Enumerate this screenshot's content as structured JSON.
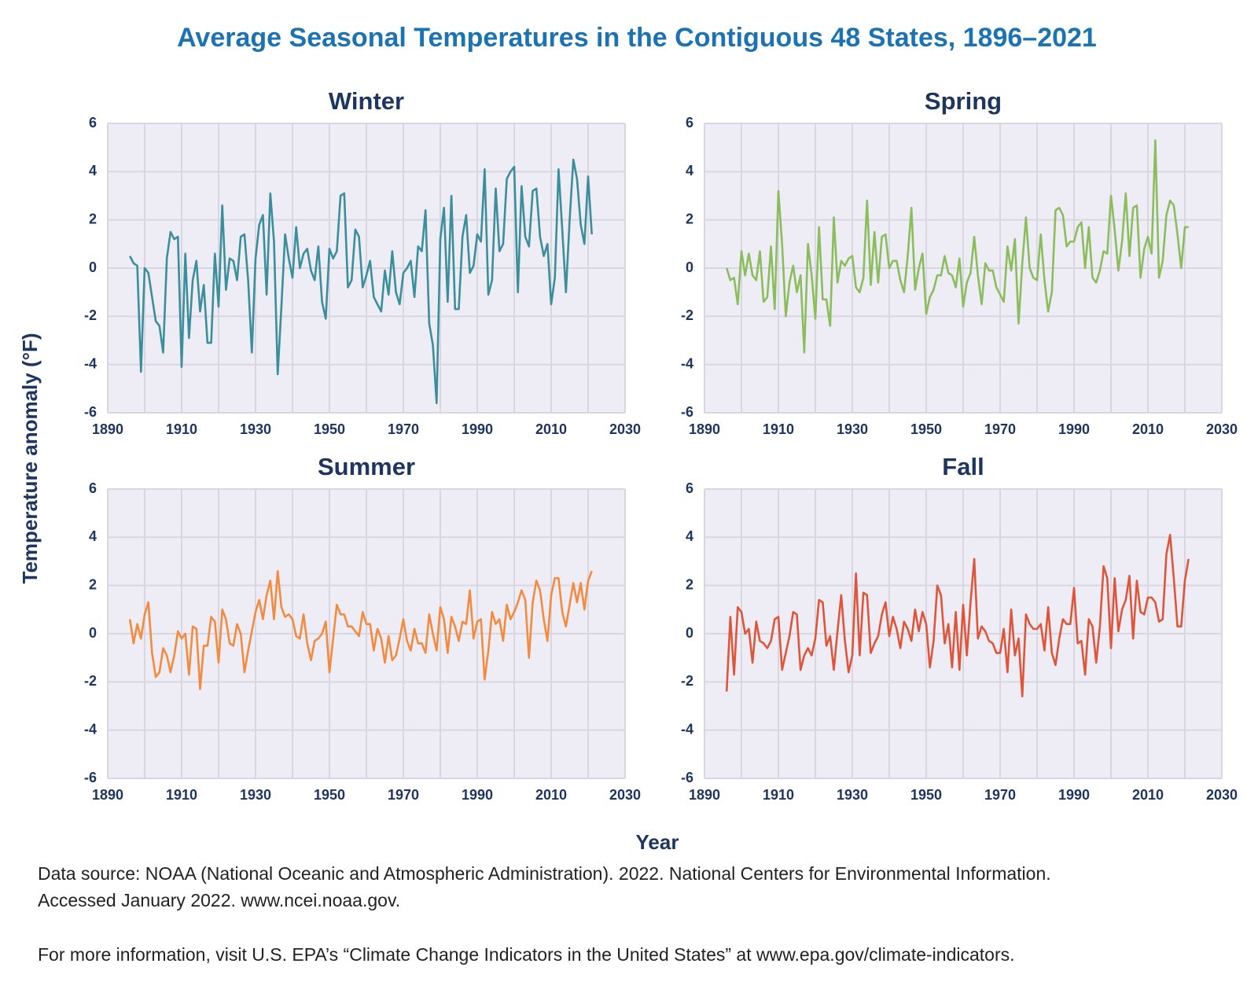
{
  "title": "Average Seasonal Temperatures in the Contiguous 48 States, 1896–2021",
  "y_axis_label": "Temperature anomaly (°F)",
  "x_axis_label": "Year",
  "notes": [
    "Data source: NOAA (National Oceanic and Atmospheric Administration). 2022. National Centers for Environmental Information.",
    "Accessed January 2022. www.ncei.noaa.gov.",
    "For more information, visit U.S. EPA’s “Climate Change Indicators in the United States” at www.epa.gov/climate-indicators."
  ],
  "chart_data": [
    {
      "type": "line",
      "title": "Winter",
      "color": "#3b8e9c",
      "x": [
        1896,
        1897,
        1898,
        1899,
        1900,
        1901,
        1902,
        1903,
        1904,
        1905,
        1906,
        1907,
        1908,
        1909,
        1910,
        1911,
        1912,
        1913,
        1914,
        1915,
        1916,
        1917,
        1918,
        1919,
        1920,
        1921,
        1922,
        1923,
        1924,
        1925,
        1926,
        1927,
        1928,
        1929,
        1930,
        1931,
        1932,
        1933,
        1934,
        1935,
        1936,
        1937,
        1938,
        1939,
        1940,
        1941,
        1942,
        1943,
        1944,
        1945,
        1946,
        1947,
        1948,
        1949,
        1950,
        1951,
        1952,
        1953,
        1954,
        1955,
        1956,
        1957,
        1958,
        1959,
        1960,
        1961,
        1962,
        1963,
        1964,
        1965,
        1966,
        1967,
        1968,
        1969,
        1970,
        1971,
        1972,
        1973,
        1974,
        1975,
        1976,
        1977,
        1978,
        1979,
        1980,
        1981,
        1982,
        1983,
        1984,
        1985,
        1986,
        1987,
        1988,
        1989,
        1990,
        1991,
        1992,
        1993,
        1994,
        1995,
        1996,
        1997,
        1998,
        1999,
        2000,
        2001,
        2002,
        2003,
        2004,
        2005,
        2006,
        2007,
        2008,
        2009,
        2010,
        2011,
        2012,
        2013,
        2014,
        2015,
        2016,
        2017,
        2018,
        2019,
        2020,
        2021
      ],
      "values": [
        0.5,
        0.2,
        0.1,
        -4.3,
        0.0,
        -0.2,
        -1.2,
        -2.2,
        -2.4,
        -3.5,
        0.4,
        1.5,
        1.2,
        1.3,
        -4.1,
        0.6,
        -2.9,
        -0.5,
        0.3,
        -1.8,
        -0.7,
        -3.1,
        -3.1,
        0.6,
        -1.6,
        2.6,
        -0.9,
        0.4,
        0.3,
        -0.5,
        1.3,
        1.4,
        -0.5,
        -3.5,
        0.4,
        1.8,
        2.2,
        -1.1,
        3.1,
        1.1,
        -4.4,
        -1.6,
        1.4,
        0.4,
        -0.4,
        1.7,
        0.0,
        0.6,
        0.8,
        -0.1,
        -0.5,
        0.9,
        -1.4,
        -2.1,
        0.8,
        0.4,
        0.7,
        3.0,
        3.1,
        -0.8,
        -0.5,
        1.6,
        1.3,
        -0.8,
        -0.3,
        0.3,
        -1.2,
        -1.5,
        -1.8,
        -0.1,
        -1.1,
        0.7,
        -1.0,
        -1.5,
        -0.2,
        0.0,
        0.3,
        -1.2,
        0.9,
        0.7,
        2.4,
        -2.3,
        -3.2,
        -5.6,
        1.2,
        2.5,
        -1.4,
        3.0,
        -1.7,
        -1.7,
        1.3,
        2.2,
        -0.2,
        0.1,
        1.4,
        1.1,
        4.1,
        -1.1,
        -0.5,
        3.3,
        0.7,
        1.0,
        3.7,
        4.0,
        4.2,
        -1.0,
        3.4,
        1.3,
        0.9,
        3.2,
        3.3,
        1.3,
        0.5,
        1.0,
        -1.5,
        -0.4,
        4.1,
        1.6,
        -1.0,
        2.0,
        4.5,
        3.7,
        1.8,
        1.0,
        3.8,
        1.4
      ],
      "xlim": [
        1890,
        2030
      ],
      "xticks": [
        1890,
        1910,
        1930,
        1950,
        1970,
        1990,
        2010,
        2030
      ],
      "xgrid": [
        1900,
        1920,
        1940,
        1960,
        1980,
        2000,
        2020
      ],
      "ylim": [
        -6,
        6
      ],
      "yticks": [
        -6,
        -4,
        -2,
        0,
        2,
        4,
        6
      ],
      "grid": true
    },
    {
      "type": "line",
      "title": "Spring",
      "color": "#8bbd5c",
      "x": [
        1896,
        1897,
        1898,
        1899,
        1900,
        1901,
        1902,
        1903,
        1904,
        1905,
        1906,
        1907,
        1908,
        1909,
        1910,
        1911,
        1912,
        1913,
        1914,
        1915,
        1916,
        1917,
        1918,
        1919,
        1920,
        1921,
        1922,
        1923,
        1924,
        1925,
        1926,
        1927,
        1928,
        1929,
        1930,
        1931,
        1932,
        1933,
        1934,
        1935,
        1936,
        1937,
        1938,
        1939,
        1940,
        1941,
        1942,
        1943,
        1944,
        1945,
        1946,
        1947,
        1948,
        1949,
        1950,
        1951,
        1952,
        1953,
        1954,
        1955,
        1956,
        1957,
        1958,
        1959,
        1960,
        1961,
        1962,
        1963,
        1964,
        1965,
        1966,
        1967,
        1968,
        1969,
        1970,
        1971,
        1972,
        1973,
        1974,
        1975,
        1976,
        1977,
        1978,
        1979,
        1980,
        1981,
        1982,
        1983,
        1984,
        1985,
        1986,
        1987,
        1988,
        1989,
        1990,
        1991,
        1992,
        1993,
        1994,
        1995,
        1996,
        1997,
        1998,
        1999,
        2000,
        2001,
        2002,
        2003,
        2004,
        2005,
        2006,
        2007,
        2008,
        2009,
        2010,
        2011,
        2012,
        2013,
        2014,
        2015,
        2016,
        2017,
        2018,
        2019,
        2020,
        2021
      ],
      "values": [
        0.0,
        -0.5,
        -0.4,
        -1.5,
        0.7,
        -0.3,
        0.6,
        -0.3,
        -0.5,
        0.7,
        -1.4,
        -1.2,
        0.9,
        -1.7,
        3.2,
        1.0,
        -2.0,
        -0.6,
        0.1,
        -1.0,
        -0.3,
        -3.5,
        1.0,
        -0.3,
        -2.1,
        1.7,
        -1.3,
        -1.3,
        -2.4,
        2.1,
        -0.6,
        0.3,
        0.1,
        0.4,
        0.5,
        -0.8,
        -1.0,
        -0.4,
        2.8,
        -0.7,
        1.5,
        -0.6,
        1.3,
        1.4,
        0.0,
        0.3,
        0.3,
        -0.5,
        -1.0,
        0.5,
        2.5,
        -0.9,
        0.0,
        0.6,
        -1.9,
        -1.2,
        -0.9,
        -0.3,
        -0.3,
        0.5,
        -0.2,
        -0.3,
        -0.8,
        0.4,
        -1.6,
        -0.6,
        -0.2,
        1.3,
        -0.3,
        -1.5,
        0.2,
        -0.1,
        -0.1,
        -0.8,
        -1.1,
        -1.4,
        0.9,
        -0.1,
        1.2,
        -2.3,
        0.2,
        2.1,
        0.0,
        -0.4,
        -0.5,
        1.4,
        -0.5,
        -1.8,
        -1.0,
        2.4,
        2.5,
        2.2,
        0.9,
        1.1,
        1.1,
        1.7,
        1.9,
        0.0,
        1.7,
        -0.4,
        -0.6,
        -0.1,
        0.7,
        0.6,
        3.0,
        1.6,
        -0.1,
        1.1,
        3.1,
        0.5,
        2.5,
        2.6,
        -0.4,
        0.8,
        1.3,
        0.6,
        5.3,
        -0.4,
        0.3,
        2.2,
        2.8,
        2.6,
        1.4,
        0.0,
        1.7,
        1.7
      ],
      "xlim": [
        1890,
        2030
      ],
      "xticks": [
        1890,
        1910,
        1930,
        1950,
        1970,
        1990,
        2010,
        2030
      ],
      "xgrid": [
        1900,
        1920,
        1940,
        1960,
        1980,
        2000,
        2020
      ],
      "ylim": [
        -6,
        6
      ],
      "yticks": [
        -6,
        -4,
        -2,
        0,
        2,
        4,
        6
      ],
      "grid": true
    },
    {
      "type": "line",
      "title": "Summer",
      "color": "#f38b3f",
      "x": [
        1896,
        1897,
        1898,
        1899,
        1900,
        1901,
        1902,
        1903,
        1904,
        1905,
        1906,
        1907,
        1908,
        1909,
        1910,
        1911,
        1912,
        1913,
        1914,
        1915,
        1916,
        1917,
        1918,
        1919,
        1920,
        1921,
        1922,
        1923,
        1924,
        1925,
        1926,
        1927,
        1928,
        1929,
        1930,
        1931,
        1932,
        1933,
        1934,
        1935,
        1936,
        1937,
        1938,
        1939,
        1940,
        1941,
        1942,
        1943,
        1944,
        1945,
        1946,
        1947,
        1948,
        1949,
        1950,
        1951,
        1952,
        1953,
        1954,
        1955,
        1956,
        1957,
        1958,
        1959,
        1960,
        1961,
        1962,
        1963,
        1964,
        1965,
        1966,
        1967,
        1968,
        1969,
        1970,
        1971,
        1972,
        1973,
        1974,
        1975,
        1976,
        1977,
        1978,
        1979,
        1980,
        1981,
        1982,
        1983,
        1984,
        1985,
        1986,
        1987,
        1988,
        1989,
        1990,
        1991,
        1992,
        1993,
        1994,
        1995,
        1996,
        1997,
        1998,
        1999,
        2000,
        2001,
        2002,
        2003,
        2004,
        2005,
        2006,
        2007,
        2008,
        2009,
        2010,
        2011,
        2012,
        2013,
        2014,
        2015,
        2016,
        2017,
        2018,
        2019,
        2020,
        2021
      ],
      "values": [
        0.6,
        -0.4,
        0.4,
        -0.2,
        0.8,
        1.3,
        -0.8,
        -1.8,
        -1.6,
        -0.6,
        -0.9,
        -1.6,
        -0.9,
        0.1,
        -0.2,
        0.0,
        -1.7,
        0.3,
        0.2,
        -2.3,
        -0.5,
        -0.5,
        0.7,
        0.5,
        -1.2,
        1.0,
        0.6,
        -0.4,
        -0.5,
        0.4,
        0.0,
        -1.6,
        -0.7,
        0.1,
        0.9,
        1.4,
        0.6,
        1.6,
        2.2,
        0.6,
        2.6,
        1.1,
        0.7,
        0.8,
        0.6,
        -0.1,
        -0.2,
        0.8,
        -0.4,
        -1.1,
        -0.3,
        -0.2,
        0.0,
        0.5,
        -1.6,
        -0.2,
        1.2,
        0.8,
        0.8,
        0.3,
        0.3,
        0.1,
        -0.1,
        0.9,
        0.4,
        0.4,
        -0.7,
        0.2,
        -0.2,
        -1.2,
        -0.1,
        -1.1,
        -0.9,
        -0.2,
        0.6,
        -0.3,
        -0.7,
        0.2,
        -0.4,
        -0.4,
        -0.8,
        0.8,
        0.0,
        -0.7,
        1.1,
        0.6,
        -0.8,
        0.7,
        0.3,
        -0.3,
        0.5,
        0.4,
        1.8,
        -0.2,
        0.5,
        0.6,
        -1.9,
        -0.7,
        0.9,
        0.4,
        0.6,
        -0.3,
        1.2,
        0.6,
        0.9,
        1.3,
        1.8,
        1.4,
        -1.0,
        1.3,
        2.2,
        1.8,
        0.6,
        -0.3,
        1.6,
        2.3,
        2.3,
        0.9,
        0.3,
        1.2,
        2.1,
        1.3,
        2.1,
        1.0,
        2.2,
        2.6
      ],
      "xlim": [
        1890,
        2030
      ],
      "xticks": [
        1890,
        1910,
        1930,
        1950,
        1970,
        1990,
        2010,
        2030
      ],
      "xgrid": [
        1900,
        1920,
        1940,
        1960,
        1980,
        2000,
        2020
      ],
      "ylim": [
        -6,
        6
      ],
      "yticks": [
        -6,
        -4,
        -2,
        0,
        2,
        4,
        6
      ],
      "grid": true
    },
    {
      "type": "line",
      "title": "Fall",
      "color": "#df553a",
      "x": [
        1896,
        1897,
        1898,
        1899,
        1900,
        1901,
        1902,
        1903,
        1904,
        1905,
        1906,
        1907,
        1908,
        1909,
        1910,
        1911,
        1912,
        1913,
        1914,
        1915,
        1916,
        1917,
        1918,
        1919,
        1920,
        1921,
        1922,
        1923,
        1924,
        1925,
        1926,
        1927,
        1928,
        1929,
        1930,
        1931,
        1932,
        1933,
        1934,
        1935,
        1936,
        1937,
        1938,
        1939,
        1940,
        1941,
        1942,
        1943,
        1944,
        1945,
        1946,
        1947,
        1948,
        1949,
        1950,
        1951,
        1952,
        1953,
        1954,
        1955,
        1956,
        1957,
        1958,
        1959,
        1960,
        1961,
        1962,
        1963,
        1964,
        1965,
        1966,
        1967,
        1968,
        1969,
        1970,
        1971,
        1972,
        1973,
        1974,
        1975,
        1976,
        1977,
        1978,
        1979,
        1980,
        1981,
        1982,
        1983,
        1984,
        1985,
        1986,
        1987,
        1988,
        1989,
        1990,
        1991,
        1992,
        1993,
        1994,
        1995,
        1996,
        1997,
        1998,
        1999,
        2000,
        2001,
        2002,
        2003,
        2004,
        2005,
        2006,
        2007,
        2008,
        2009,
        2010,
        2011,
        2012,
        2013,
        2014,
        2015,
        2016,
        2017,
        2018,
        2019,
        2020,
        2021
      ],
      "values": [
        -2.4,
        0.7,
        -1.7,
        1.1,
        0.9,
        0.0,
        0.2,
        -1.2,
        0.5,
        -0.3,
        -0.4,
        -0.6,
        -0.3,
        0.6,
        0.7,
        -1.5,
        -0.8,
        -0.1,
        0.9,
        0.8,
        -1.5,
        -0.9,
        -0.6,
        -0.9,
        -0.2,
        1.4,
        1.3,
        -0.5,
        -0.1,
        -1.5,
        0.1,
        1.6,
        -0.3,
        -1.6,
        -0.9,
        2.5,
        -0.9,
        1.7,
        1.6,
        -0.8,
        -0.4,
        -0.1,
        0.8,
        1.3,
        -0.1,
        0.7,
        0.2,
        -0.6,
        0.5,
        0.2,
        -0.3,
        1.0,
        0.1,
        0.9,
        0.4,
        -1.4,
        -0.3,
        2.0,
        1.6,
        -0.4,
        0.4,
        -1.4,
        0.9,
        -1.5,
        1.2,
        -0.9,
        1.3,
        3.1,
        -0.2,
        0.3,
        0.1,
        -0.3,
        -0.4,
        -0.8,
        -0.8,
        0.2,
        -1.6,
        1.0,
        -0.9,
        -0.2,
        -2.6,
        0.8,
        0.4,
        0.2,
        0.2,
        0.4,
        -0.7,
        1.1,
        -0.8,
        -1.3,
        -0.2,
        0.6,
        0.4,
        0.4,
        1.9,
        -0.4,
        -0.3,
        -1.7,
        0.6,
        0.3,
        -1.2,
        0.3,
        2.8,
        2.3,
        -0.6,
        2.3,
        0.1,
        1.0,
        1.4,
        2.4,
        -0.2,
        2.2,
        0.9,
        0.8,
        1.5,
        1.5,
        1.3,
        0.5,
        0.6,
        3.3,
        4.1,
        2.3,
        0.3,
        0.3,
        2.2,
        3.1
      ],
      "xlim": [
        1890,
        2030
      ],
      "xticks": [
        1890,
        1910,
        1930,
        1950,
        1970,
        1990,
        2010,
        2030
      ],
      "xgrid": [
        1900,
        1920,
        1940,
        1960,
        1980,
        2000,
        2020
      ],
      "ylim": [
        -6,
        6
      ],
      "yticks": [
        -6,
        -4,
        -2,
        0,
        2,
        4,
        6
      ],
      "grid": true
    }
  ]
}
